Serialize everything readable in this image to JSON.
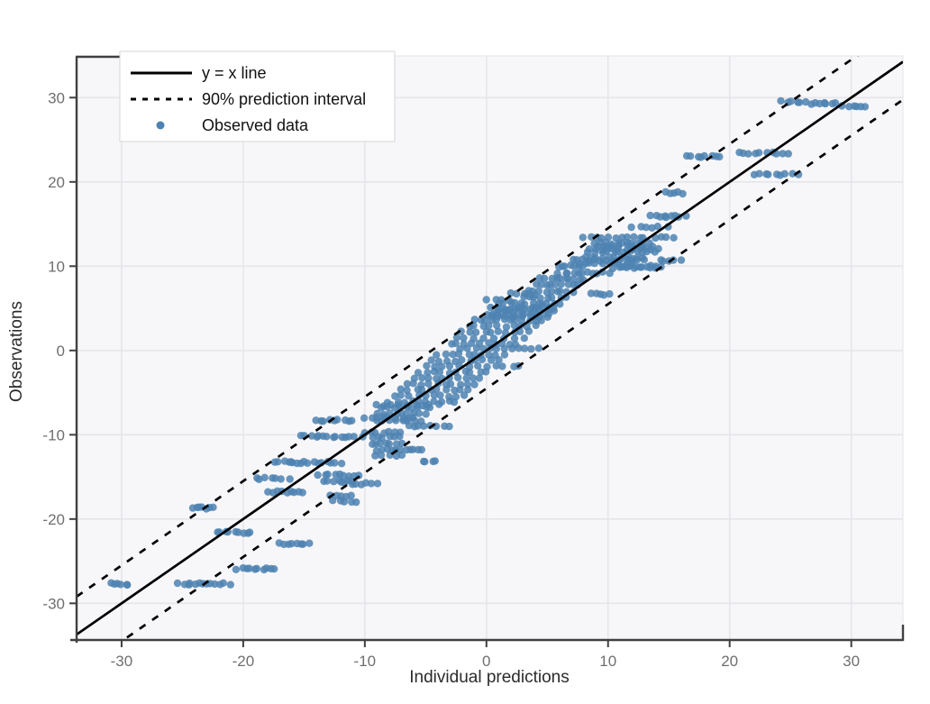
{
  "chart_data": {
    "type": "scatter",
    "title": "",
    "xlabel": "Individual predictions",
    "ylabel": "Observations",
    "xlim": [
      -33.7,
      34.25
    ],
    "ylim": [
      -34.35,
      34.95
    ],
    "x_ticks": [
      -30,
      -20,
      -10,
      0,
      10,
      20,
      30
    ],
    "y_ticks": [
      -30,
      -20,
      -10,
      0,
      10,
      20,
      30
    ],
    "grid": "on",
    "legend_position": "top-left",
    "legend": [
      {
        "sample": "solid-line",
        "label": "y = x line"
      },
      {
        "sample": "dashed-line",
        "label": "90% prediction interval"
      },
      {
        "sample": "point",
        "label": "Observed data"
      }
    ],
    "lines": {
      "identity": {
        "slope": 1,
        "intercept": 0,
        "style": "solid",
        "color": "#000000"
      },
      "interval_upper": {
        "slope": 1,
        "intercept": 4.5,
        "style": "dashed",
        "color": "#000000"
      },
      "interval_lower": {
        "slope": 1,
        "intercept": -4.5,
        "style": "dashed",
        "color": "#000000"
      }
    },
    "points": {
      "color": "#4d82b2",
      "opacity": 0.85,
      "radius_px": 4.2,
      "cluster_format": [
        "y",
        "x_start",
        "x_end",
        "count"
      ],
      "clusters": [
        [
          29.5,
          24.3,
          26.3,
          6
        ],
        [
          29.3,
          26.7,
          28.7,
          7
        ],
        [
          29.0,
          29.3,
          31.3,
          6
        ],
        [
          23.4,
          20.7,
          24.8,
          10
        ],
        [
          23.0,
          16.5,
          19.2,
          8
        ],
        [
          20.9,
          22.0,
          25.5,
          9
        ],
        [
          18.7,
          14.7,
          16.2,
          5
        ],
        [
          15.9,
          13.5,
          16.3,
          9
        ],
        [
          14.6,
          12.0,
          14.8,
          6
        ],
        [
          13.4,
          8.0,
          13.0,
          11
        ],
        [
          13.4,
          13.9,
          15.4,
          4
        ],
        [
          12.7,
          9.0,
          13.3,
          11
        ],
        [
          12.4,
          9.0,
          13.5,
          10
        ],
        [
          12.0,
          8.5,
          14.0,
          12
        ],
        [
          11.7,
          8.5,
          13.8,
          12
        ],
        [
          11.0,
          8.0,
          13.0,
          11
        ],
        [
          10.7,
          7.0,
          13.0,
          13
        ],
        [
          10.7,
          14.2,
          16.0,
          5
        ],
        [
          10.3,
          7.5,
          12.0,
          10
        ],
        [
          10.0,
          5.8,
          8.0,
          7
        ],
        [
          10.0,
          11.0,
          14.0,
          8
        ],
        [
          9.8,
          10.5,
          14.4,
          8
        ],
        [
          9.2,
          6.0,
          10.0,
          11
        ],
        [
          8.5,
          4.5,
          8.0,
          10
        ],
        [
          7.8,
          4.0,
          7.5,
          9
        ],
        [
          7.0,
          3.5,
          7.0,
          9
        ],
        [
          6.7,
          2.0,
          4.0,
          5
        ],
        [
          6.7,
          8.5,
          10.2,
          5
        ],
        [
          6.3,
          3.0,
          6.5,
          8
        ],
        [
          6.0,
          0.0,
          2.0,
          4
        ],
        [
          5.6,
          1.0,
          6.0,
          12
        ],
        [
          5.0,
          0.5,
          5.5,
          12
        ],
        [
          4.8,
          1.0,
          5.5,
          10
        ],
        [
          4.3,
          0.0,
          5.0,
          12
        ],
        [
          4.0,
          0.5,
          5.0,
          10
        ],
        [
          3.6,
          -1.0,
          4.5,
          12
        ],
        [
          2.9,
          -1.5,
          4.0,
          10
        ],
        [
          2.2,
          -2.0,
          3.5,
          10
        ],
        [
          1.5,
          -2.5,
          3.0,
          8
        ],
        [
          0.8,
          -3.0,
          2.5,
          10
        ],
        [
          0.2,
          -2.0,
          4.3,
          12
        ],
        [
          -0.5,
          -4.0,
          1.5,
          10
        ],
        [
          -1.2,
          -4.5,
          1.0,
          10
        ],
        [
          -1.9,
          -5.0,
          2.8,
          12
        ],
        [
          -2.6,
          -5.5,
          0.0,
          10
        ],
        [
          -3.3,
          -6.0,
          -0.5,
          10
        ],
        [
          -4.0,
          -6.5,
          -1.0,
          10
        ],
        [
          -4.7,
          -7.0,
          -1.5,
          10
        ],
        [
          -5.4,
          -7.5,
          -2.0,
          10
        ],
        [
          -6.1,
          -8.0,
          -2.5,
          10
        ],
        [
          -6.5,
          -9.0,
          -4.0,
          9
        ],
        [
          -6.8,
          -8.5,
          -4.5,
          9
        ],
        [
          -7.5,
          -9.0,
          -5.0,
          9
        ],
        [
          -8.0,
          -10.0,
          -6.0,
          9
        ],
        [
          -8.3,
          -14.0,
          -11.0,
          9
        ],
        [
          -8.3,
          -9.0,
          -5.5,
          8
        ],
        [
          -9.0,
          -6.5,
          -3.0,
          8
        ],
        [
          -9.7,
          -10.0,
          -7.0,
          7
        ],
        [
          -10.2,
          -14.0,
          -11.0,
          10
        ],
        [
          -10.2,
          -15.3,
          -14.4,
          3
        ],
        [
          -10.3,
          -10.0,
          -7.0,
          7
        ],
        [
          -11.0,
          -9.5,
          -7.0,
          7
        ],
        [
          -11.8,
          -9.0,
          -7.0,
          6
        ],
        [
          -11.8,
          -6.7,
          -5.2,
          5
        ],
        [
          -12.5,
          -9.0,
          -7.0,
          5
        ],
        [
          -13.2,
          -17.5,
          -16.0,
          5
        ],
        [
          -13.3,
          -16.0,
          -12.0,
          12
        ],
        [
          -13.2,
          -5.3,
          -4.1,
          4
        ],
        [
          -14.8,
          -13.7,
          -10.5,
          9
        ],
        [
          -15.5,
          -13.5,
          -11.0,
          7
        ],
        [
          -15.2,
          -19.0,
          -16.3,
          7
        ],
        [
          -15.8,
          -11.5,
          -9.0,
          7
        ],
        [
          -16.8,
          -18.0,
          -15.0,
          9
        ],
        [
          -17.3,
          -12.7,
          -11.0,
          5
        ],
        [
          -17.9,
          -12.5,
          -10.8,
          5
        ],
        [
          -18.7,
          -24.2,
          -22.3,
          7
        ],
        [
          -21.6,
          -22.2,
          -19.3,
          9
        ],
        [
          -22.9,
          -17.1,
          -14.6,
          8
        ],
        [
          -25.9,
          -20.5,
          -17.3,
          10
        ],
        [
          -27.7,
          -31.0,
          -29.4,
          6
        ],
        [
          -27.7,
          -25.3,
          -23.3,
          7
        ],
        [
          -27.7,
          -22.9,
          -21.2,
          6
        ]
      ]
    }
  },
  "colors": {
    "page_bg": "#ffffff",
    "panel_bg": "#f7f7f9",
    "grid": "#e6e6ea",
    "spine": "#404040",
    "tick_label": "#6f6f6f",
    "axis_title": "#2b2b2b",
    "line": "#000000",
    "point": "#4d82b2",
    "legend_bg": "#ffffff",
    "legend_border": "#d6d6d6",
    "legend_text": "#111111"
  }
}
